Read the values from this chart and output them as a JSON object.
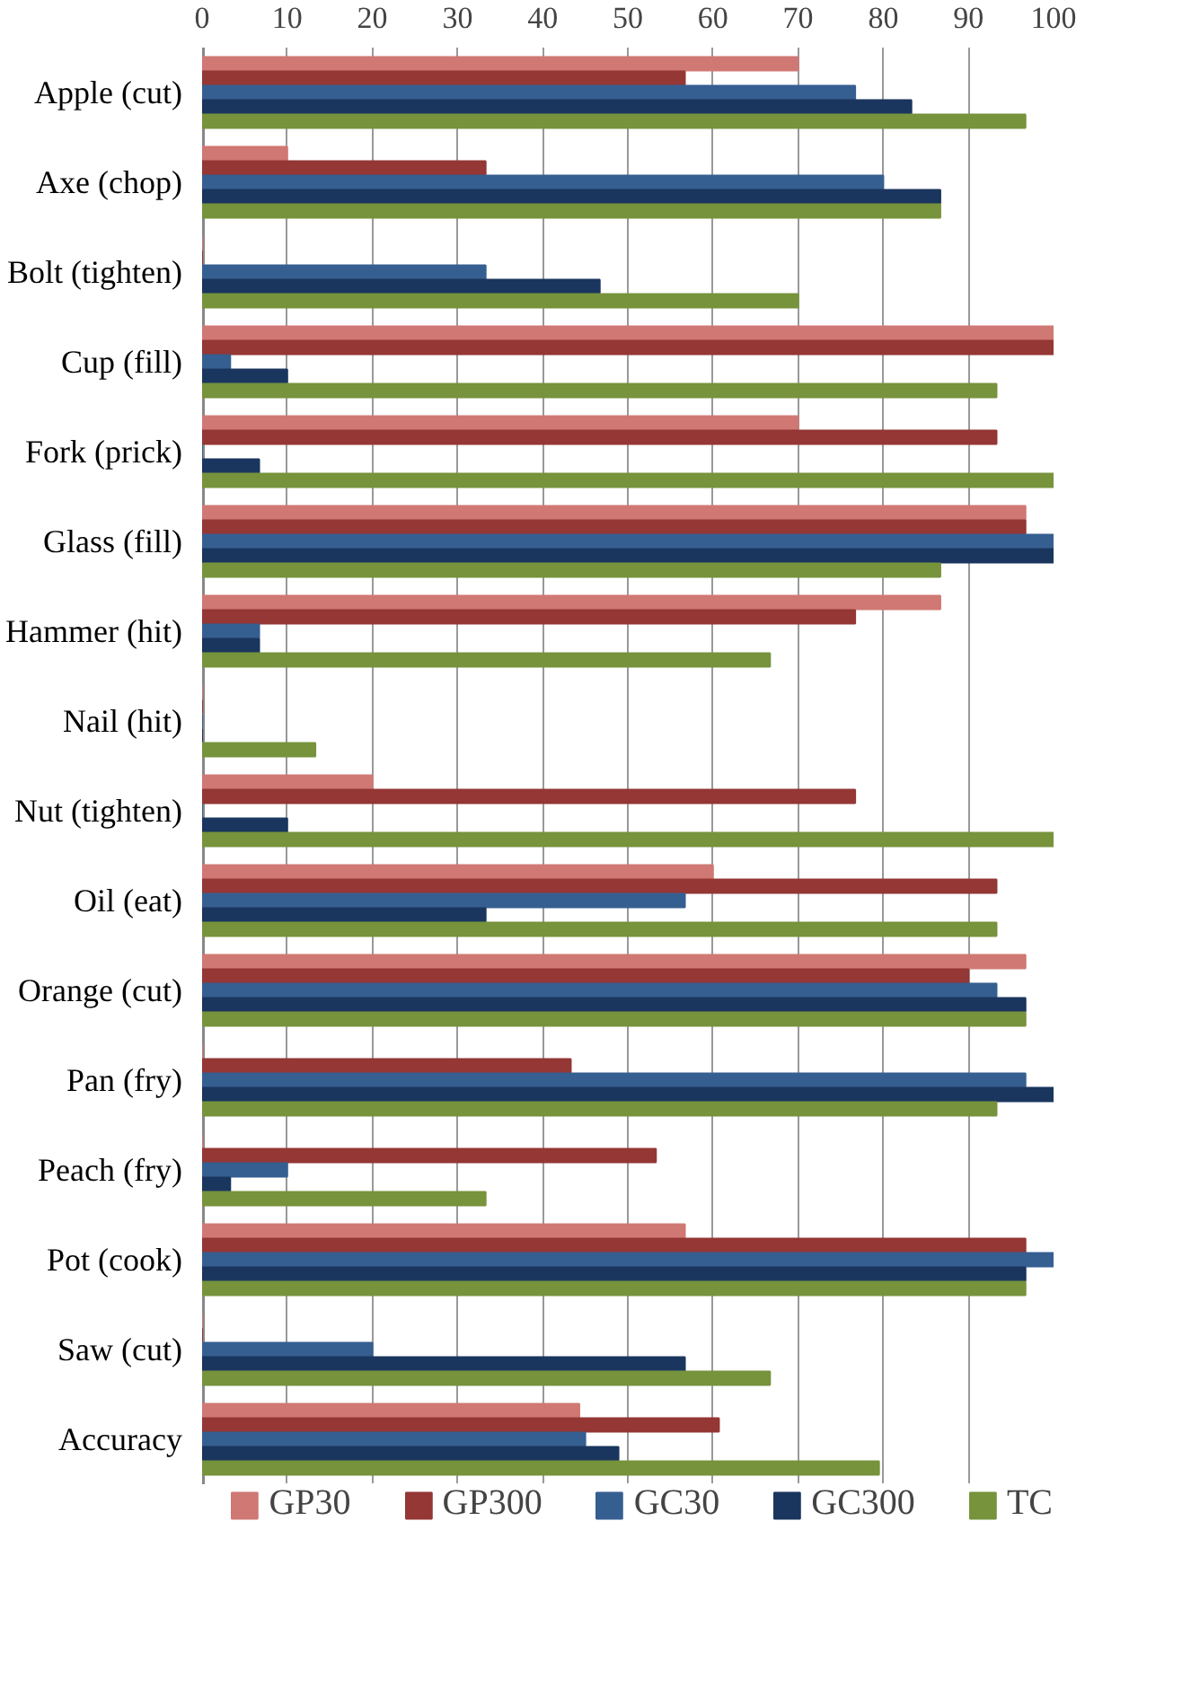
{
  "chart_data": {
    "type": "bar",
    "orientation": "horizontal",
    "categories": [
      "Apple (cut)",
      "Axe (chop)",
      "Bolt (tighten)",
      "Cup (fill)",
      "Fork (prick)",
      "Glass (fill)",
      "Hammer (hit)",
      "Nail (hit)",
      "Nut (tighten)",
      "Oil (eat)",
      "Orange (cut)",
      "Pan (fry)",
      "Peach (fry)",
      "Pot (cook)",
      "Saw (cut)",
      "Accuracy"
    ],
    "series": [
      {
        "name": "GP30",
        "color": "#d07874",
        "values": [
          70,
          10,
          0,
          100,
          70,
          96.7,
          86.7,
          0,
          20,
          60,
          96.7,
          0,
          0,
          56.7,
          0,
          44.3
        ]
      },
      {
        "name": "GP300",
        "color": "#943735",
        "values": [
          56.7,
          33.3,
          0,
          100,
          93.3,
          96.7,
          76.7,
          0,
          76.7,
          93.3,
          90,
          43.3,
          53.3,
          96.7,
          0,
          60.7
        ]
      },
      {
        "name": "GC30",
        "color": "#365f91",
        "values": [
          76.7,
          80,
          33.3,
          3.3,
          0,
          100,
          6.7,
          0,
          0,
          56.7,
          93.3,
          96.7,
          10,
          100,
          20,
          45
        ]
      },
      {
        "name": "GC300",
        "color": "#1a365e",
        "values": [
          83.3,
          86.7,
          46.7,
          10,
          6.7,
          100,
          6.7,
          0,
          10,
          33.3,
          96.7,
          100,
          3.3,
          96.7,
          56.7,
          48.9
        ]
      },
      {
        "name": "TC",
        "color": "#77933c",
        "values": [
          96.7,
          86.7,
          70,
          93.3,
          100,
          86.7,
          66.7,
          13.3,
          100,
          93.3,
          96.7,
          93.3,
          33.3,
          96.7,
          66.7,
          79.5
        ]
      }
    ],
    "xlim": [
      0,
      100
    ],
    "xticks": [
      0,
      10,
      20,
      30,
      40,
      50,
      60,
      70,
      80,
      90,
      100
    ],
    "grid": "x",
    "legend": "bottom"
  }
}
